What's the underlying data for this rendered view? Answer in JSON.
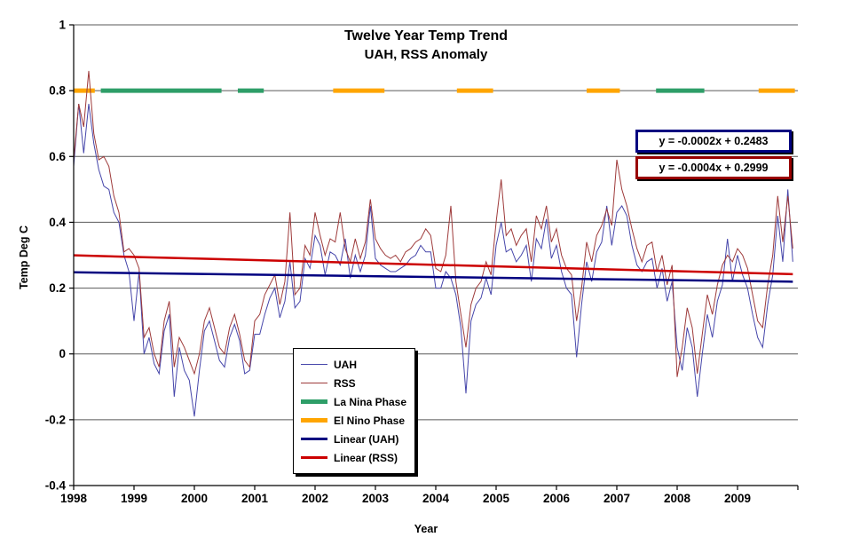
{
  "chart_data": {
    "type": "line",
    "title": "Twelve Year Temp Trend",
    "subtitle": "UAH, RSS Anomaly",
    "xlabel": "Year",
    "ylabel": "Temp Deg C",
    "ylim": [
      -0.4,
      1
    ],
    "x_range": [
      1998,
      2010
    ],
    "x_tick_labels": [
      "1998",
      "1999",
      "2000",
      "2001",
      "2002",
      "2003",
      "2004",
      "2005",
      "2006",
      "2007",
      "2008",
      "2009"
    ],
    "y_ticks": [
      1,
      0.8,
      0.6,
      0.4,
      0.2,
      0,
      -0.2,
      -0.4
    ],
    "y_tick_labels": [
      "1",
      "0.8",
      "0.6",
      "0.4",
      "0.2",
      "0",
      "-0.2",
      "-0.4"
    ],
    "grid": "horizontal",
    "legend_position": "inside-lower-middle",
    "series": [
      {
        "name": "UAH",
        "color": "#4646aa",
        "width": 1,
        "first_month": "1998-01",
        "values": [
          0.57,
          0.76,
          0.61,
          0.76,
          0.64,
          0.56,
          0.51,
          0.5,
          0.43,
          0.4,
          0.3,
          0.25,
          0.1,
          0.25,
          0.0,
          0.05,
          -0.03,
          -0.06,
          0.07,
          0.12,
          -0.13,
          0.02,
          -0.05,
          -0.08,
          -0.19,
          -0.05,
          0.07,
          0.1,
          0.04,
          -0.02,
          -0.04,
          0.05,
          0.09,
          0.04,
          -0.06,
          -0.05,
          0.06,
          0.06,
          0.12,
          0.17,
          0.2,
          0.11,
          0.16,
          0.28,
          0.14,
          0.16,
          0.29,
          0.26,
          0.36,
          0.33,
          0.24,
          0.31,
          0.3,
          0.27,
          0.35,
          0.23,
          0.3,
          0.25,
          0.3,
          0.45,
          0.29,
          0.27,
          0.26,
          0.25,
          0.25,
          0.26,
          0.27,
          0.29,
          0.3,
          0.33,
          0.31,
          0.31,
          0.2,
          0.2,
          0.25,
          0.23,
          0.18,
          0.08,
          -0.12,
          0.1,
          0.15,
          0.17,
          0.23,
          0.18,
          0.33,
          0.4,
          0.31,
          0.32,
          0.28,
          0.3,
          0.33,
          0.22,
          0.35,
          0.32,
          0.41,
          0.29,
          0.33,
          0.25,
          0.2,
          0.18,
          -0.01,
          0.15,
          0.28,
          0.22,
          0.31,
          0.34,
          0.45,
          0.33,
          0.43,
          0.45,
          0.42,
          0.33,
          0.27,
          0.25,
          0.28,
          0.29,
          0.2,
          0.26,
          0.16,
          0.22,
          0.02,
          -0.05,
          0.08,
          0.02,
          -0.13,
          0.0,
          0.12,
          0.05,
          0.16,
          0.21,
          0.35,
          0.22,
          0.3,
          0.24,
          0.2,
          0.12,
          0.05,
          0.02,
          0.15,
          0.24,
          0.42,
          0.28,
          0.5,
          0.28
        ]
      },
      {
        "name": "RSS",
        "color": "#9e3a3a",
        "width": 1,
        "first_month": "1998-01",
        "values": [
          0.59,
          0.76,
          0.69,
          0.86,
          0.67,
          0.59,
          0.6,
          0.57,
          0.48,
          0.43,
          0.31,
          0.32,
          0.3,
          0.26,
          0.05,
          0.08,
          0.0,
          -0.04,
          0.1,
          0.16,
          -0.04,
          0.05,
          0.02,
          -0.02,
          -0.06,
          0.0,
          0.1,
          0.14,
          0.08,
          0.02,
          0.0,
          0.08,
          0.12,
          0.06,
          -0.02,
          -0.04,
          0.1,
          0.12,
          0.18,
          0.21,
          0.24,
          0.15,
          0.22,
          0.43,
          0.18,
          0.2,
          0.33,
          0.3,
          0.43,
          0.36,
          0.3,
          0.35,
          0.34,
          0.43,
          0.32,
          0.28,
          0.35,
          0.29,
          0.34,
          0.47,
          0.35,
          0.32,
          0.3,
          0.29,
          0.3,
          0.28,
          0.31,
          0.32,
          0.34,
          0.35,
          0.38,
          0.36,
          0.26,
          0.25,
          0.3,
          0.45,
          0.22,
          0.12,
          0.02,
          0.15,
          0.2,
          0.22,
          0.28,
          0.24,
          0.4,
          0.53,
          0.36,
          0.38,
          0.33,
          0.36,
          0.38,
          0.28,
          0.42,
          0.38,
          0.45,
          0.34,
          0.38,
          0.3,
          0.26,
          0.24,
          0.1,
          0.2,
          0.34,
          0.28,
          0.36,
          0.39,
          0.44,
          0.39,
          0.59,
          0.5,
          0.45,
          0.38,
          0.32,
          0.28,
          0.33,
          0.34,
          0.25,
          0.3,
          0.21,
          0.27,
          -0.07,
          0.02,
          0.14,
          0.08,
          -0.06,
          0.06,
          0.18,
          0.12,
          0.21,
          0.27,
          0.3,
          0.28,
          0.32,
          0.3,
          0.26,
          0.18,
          0.1,
          0.08,
          0.21,
          0.3,
          0.48,
          0.34,
          0.48,
          0.32
        ]
      }
    ],
    "trend_lines": [
      {
        "name": "Linear (UAH)",
        "color": "#000080",
        "width": 2.5,
        "slope_per_month": -0.0002,
        "intercept": 0.2483
      },
      {
        "name": "Linear (RSS)",
        "color": "#cc0000",
        "width": 2.5,
        "slope_per_month": -0.0004,
        "intercept": 0.2999
      }
    ],
    "phase_bars": {
      "y_value": 0.8,
      "thickness": 5,
      "colors": {
        "La Nina": "#2e9e68",
        "El Nino": "#ffa500"
      },
      "segments": [
        {
          "phase": "El Nino",
          "start": 1998.0,
          "end": 1998.35
        },
        {
          "phase": "La Nina",
          "start": 1998.45,
          "end": 2000.45
        },
        {
          "phase": "La Nina",
          "start": 2000.72,
          "end": 2001.15
        },
        {
          "phase": "El Nino",
          "start": 2002.3,
          "end": 2003.15
        },
        {
          "phase": "El Nino",
          "start": 2004.35,
          "end": 2004.95
        },
        {
          "phase": "El Nino",
          "start": 2006.5,
          "end": 2007.05
        },
        {
          "phase": "La Nina",
          "start": 2007.65,
          "end": 2008.45
        },
        {
          "phase": "El Nino",
          "start": 2009.35,
          "end": 2009.95
        }
      ]
    },
    "legend": {
      "items": [
        {
          "label": "UAH",
          "color": "#4646aa",
          "thickness": 1
        },
        {
          "label": "RSS",
          "color": "#9e3a3a",
          "thickness": 1
        },
        {
          "label": "La Nina Phase",
          "color": "#2e9e68",
          "thickness": 5
        },
        {
          "label": "El Nino Phase",
          "color": "#ffa500",
          "thickness": 5
        },
        {
          "label": "Linear (UAH)",
          "color": "#000080",
          "thickness": 3
        },
        {
          "label": "Linear (RSS)",
          "color": "#cc0000",
          "thickness": 3
        }
      ]
    }
  },
  "annotations": {
    "uah_equation": "y = -0.0002x + 0.2483",
    "rss_equation": "y = -0.0004x + 0.2999"
  }
}
